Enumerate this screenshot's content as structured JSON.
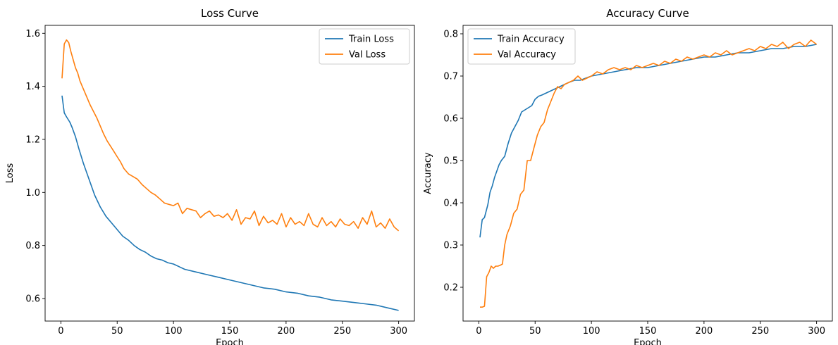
{
  "chart_data": [
    {
      "type": "line",
      "title": "Loss Curve",
      "xlabel": "Epoch",
      "ylabel": "Loss",
      "xlim": [
        -14,
        314
      ],
      "ylim": [
        0.515,
        1.63
      ],
      "xticks": [
        0,
        50,
        100,
        150,
        200,
        250,
        300
      ],
      "yticks": [
        0.6,
        0.8,
        1.0,
        1.2,
        1.4,
        1.6
      ],
      "ytick_labels": [
        "0.6",
        "0.8",
        "1.0",
        "1.2",
        "1.4",
        "1.6"
      ],
      "grid": false,
      "legend": "top-right",
      "series": [
        {
          "name": "Train Loss",
          "color": "#1f77b4",
          "x": [
            1,
            3,
            5,
            8,
            10,
            13,
            16,
            20,
            25,
            30,
            35,
            40,
            45,
            50,
            55,
            60,
            65,
            70,
            75,
            80,
            85,
            90,
            95,
            100,
            110,
            120,
            130,
            140,
            150,
            160,
            170,
            180,
            190,
            200,
            210,
            220,
            230,
            240,
            250,
            260,
            270,
            280,
            290,
            300
          ],
          "y": [
            1.365,
            1.3,
            1.285,
            1.265,
            1.245,
            1.21,
            1.165,
            1.11,
            1.05,
            0.99,
            0.945,
            0.91,
            0.885,
            0.86,
            0.835,
            0.82,
            0.8,
            0.785,
            0.775,
            0.76,
            0.75,
            0.745,
            0.735,
            0.73,
            0.71,
            0.7,
            0.69,
            0.68,
            0.67,
            0.66,
            0.65,
            0.64,
            0.635,
            0.625,
            0.62,
            0.61,
            0.605,
            0.595,
            0.59,
            0.585,
            0.58,
            0.575,
            0.565,
            0.555
          ]
        },
        {
          "name": "Val Loss",
          "color": "#ff7f0e",
          "x": [
            1,
            3,
            5,
            7,
            9,
            11,
            13,
            15,
            17,
            20,
            23,
            26,
            29,
            32,
            35,
            38,
            41,
            44,
            47,
            50,
            53,
            56,
            60,
            64,
            68,
            72,
            76,
            80,
            84,
            88,
            92,
            96,
            100,
            104,
            108,
            112,
            116,
            120,
            124,
            128,
            132,
            136,
            140,
            144,
            148,
            152,
            156,
            160,
            164,
            168,
            172,
            176,
            180,
            184,
            188,
            192,
            196,
            200,
            204,
            208,
            212,
            216,
            220,
            224,
            228,
            232,
            236,
            240,
            244,
            248,
            252,
            256,
            260,
            264,
            268,
            272,
            276,
            280,
            284,
            288,
            292,
            296,
            300
          ],
          "y": [
            1.43,
            1.56,
            1.575,
            1.565,
            1.53,
            1.5,
            1.47,
            1.45,
            1.42,
            1.39,
            1.36,
            1.33,
            1.305,
            1.28,
            1.25,
            1.22,
            1.195,
            1.175,
            1.155,
            1.135,
            1.115,
            1.09,
            1.07,
            1.06,
            1.05,
            1.03,
            1.015,
            1.0,
            0.99,
            0.975,
            0.96,
            0.955,
            0.95,
            0.96,
            0.92,
            0.94,
            0.935,
            0.93,
            0.905,
            0.92,
            0.93,
            0.91,
            0.915,
            0.905,
            0.92,
            0.895,
            0.935,
            0.88,
            0.905,
            0.9,
            0.93,
            0.875,
            0.91,
            0.885,
            0.895,
            0.88,
            0.92,
            0.87,
            0.905,
            0.88,
            0.89,
            0.875,
            0.92,
            0.88,
            0.87,
            0.905,
            0.875,
            0.89,
            0.87,
            0.9,
            0.88,
            0.875,
            0.89,
            0.865,
            0.905,
            0.88,
            0.93,
            0.87,
            0.885,
            0.865,
            0.9,
            0.87,
            0.855
          ]
        }
      ]
    },
    {
      "type": "line",
      "title": "Accuracy Curve",
      "xlabel": "Epoch",
      "ylabel": "Accuracy",
      "xlim": [
        -14,
        314
      ],
      "ylim": [
        0.12,
        0.82
      ],
      "xticks": [
        0,
        50,
        100,
        150,
        200,
        250,
        300
      ],
      "yticks": [
        0.2,
        0.3,
        0.4,
        0.5,
        0.6,
        0.7,
        0.8
      ],
      "ytick_labels": [
        "0.2",
        "0.3",
        "0.4",
        "0.5",
        "0.6",
        "0.7",
        "0.8"
      ],
      "grid": false,
      "legend": "top-left",
      "series": [
        {
          "name": "Train Accuracy",
          "color": "#1f77b4",
          "x": [
            1,
            3,
            5,
            8,
            10,
            12,
            14,
            16,
            18,
            20,
            23,
            26,
            29,
            32,
            35,
            38,
            41,
            44,
            47,
            50,
            53,
            56,
            60,
            64,
            68,
            72,
            76,
            80,
            85,
            90,
            95,
            100,
            110,
            120,
            130,
            140,
            150,
            160,
            170,
            180,
            190,
            200,
            210,
            220,
            230,
            240,
            250,
            260,
            270,
            280,
            290,
            300
          ],
          "y": [
            0.318,
            0.36,
            0.365,
            0.395,
            0.425,
            0.44,
            0.46,
            0.475,
            0.49,
            0.5,
            0.51,
            0.54,
            0.565,
            0.58,
            0.595,
            0.615,
            0.62,
            0.625,
            0.63,
            0.645,
            0.652,
            0.655,
            0.66,
            0.665,
            0.67,
            0.675,
            0.68,
            0.685,
            0.69,
            0.69,
            0.695,
            0.7,
            0.705,
            0.71,
            0.715,
            0.72,
            0.72,
            0.725,
            0.73,
            0.735,
            0.74,
            0.745,
            0.745,
            0.75,
            0.755,
            0.755,
            0.76,
            0.765,
            0.765,
            0.77,
            0.77,
            0.775
          ]
        },
        {
          "name": "Val Accuracy",
          "color": "#ff7f0e",
          "x": [
            1,
            3,
            5,
            7,
            9,
            11,
            13,
            15,
            17,
            19,
            21,
            23,
            25,
            28,
            31,
            34,
            37,
            40,
            43,
            46,
            49,
            52,
            55,
            58,
            61,
            64,
            67,
            70,
            73,
            76,
            80,
            84,
            88,
            92,
            96,
            100,
            105,
            110,
            115,
            120,
            125,
            130,
            135,
            140,
            145,
            150,
            155,
            160,
            165,
            170,
            175,
            180,
            185,
            190,
            195,
            200,
            205,
            210,
            215,
            220,
            225,
            230,
            235,
            240,
            245,
            250,
            255,
            260,
            265,
            270,
            275,
            280,
            285,
            290,
            295,
            300
          ],
          "y": [
            0.153,
            0.153,
            0.155,
            0.225,
            0.235,
            0.25,
            0.245,
            0.25,
            0.25,
            0.252,
            0.255,
            0.3,
            0.325,
            0.345,
            0.375,
            0.385,
            0.42,
            0.43,
            0.5,
            0.5,
            0.53,
            0.56,
            0.58,
            0.59,
            0.62,
            0.64,
            0.66,
            0.675,
            0.67,
            0.68,
            0.685,
            0.69,
            0.7,
            0.69,
            0.695,
            0.7,
            0.71,
            0.705,
            0.715,
            0.72,
            0.715,
            0.72,
            0.715,
            0.725,
            0.72,
            0.725,
            0.73,
            0.725,
            0.735,
            0.73,
            0.74,
            0.735,
            0.745,
            0.74,
            0.745,
            0.75,
            0.745,
            0.755,
            0.75,
            0.76,
            0.75,
            0.755,
            0.76,
            0.765,
            0.76,
            0.77,
            0.765,
            0.775,
            0.77,
            0.78,
            0.765,
            0.775,
            0.78,
            0.77,
            0.785,
            0.775
          ]
        }
      ]
    }
  ]
}
